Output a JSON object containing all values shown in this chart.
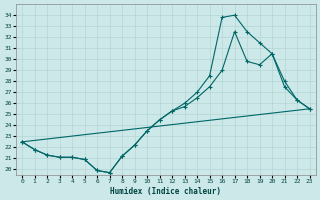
{
  "xlabel": "Humidex (Indice chaleur)",
  "bg_color": "#cce8e8",
  "grid_color": "#aadddd",
  "line_color": "#006666",
  "xlim": [
    -0.5,
    23.5
  ],
  "ylim": [
    19.5,
    35.0
  ],
  "xticks": [
    0,
    1,
    2,
    3,
    4,
    5,
    6,
    7,
    8,
    9,
    10,
    11,
    12,
    13,
    14,
    15,
    16,
    17,
    18,
    19,
    20,
    21,
    22,
    23
  ],
  "yticks": [
    20,
    21,
    22,
    23,
    24,
    25,
    26,
    27,
    28,
    29,
    30,
    31,
    32,
    33,
    34
  ],
  "line1_x": [
    0,
    1,
    2,
    3,
    4,
    5,
    6,
    7,
    8,
    9,
    10,
    11,
    12,
    13,
    14,
    15,
    16,
    17,
    18,
    19,
    20,
    21,
    22,
    23
  ],
  "line1_y": [
    22.5,
    21.8,
    21.3,
    21.1,
    21.1,
    20.9,
    19.9,
    19.7,
    21.2,
    22.2,
    23.5,
    24.5,
    25.3,
    26.0,
    27.0,
    28.5,
    33.8,
    34.0,
    32.5,
    31.5,
    30.5,
    28.0,
    26.3,
    25.5
  ],
  "line2_x": [
    0,
    1,
    2,
    3,
    4,
    5,
    6,
    7,
    8,
    9,
    10,
    11,
    12,
    13,
    14,
    15,
    16,
    17,
    18,
    19,
    20,
    21,
    22,
    23
  ],
  "line2_y": [
    22.5,
    21.8,
    21.3,
    21.1,
    21.1,
    20.9,
    19.9,
    19.7,
    21.2,
    22.2,
    23.5,
    24.5,
    25.3,
    25.7,
    26.5,
    27.5,
    29.0,
    32.5,
    29.8,
    29.5,
    30.5,
    27.5,
    26.3,
    25.5
  ],
  "line3_x": [
    0,
    23
  ],
  "line3_y": [
    22.5,
    25.5
  ]
}
